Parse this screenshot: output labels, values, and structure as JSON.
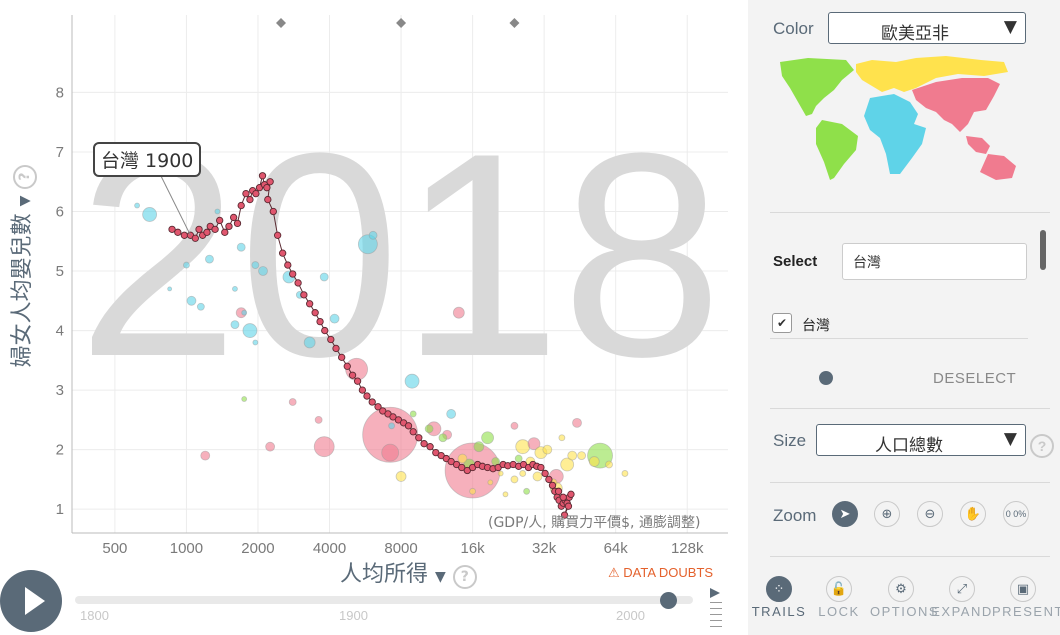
{
  "chart_data": {
    "type": "scatter",
    "year": "2018",
    "ylabel": "婦女人均嬰兒數",
    "xlabel": "人均所得",
    "x_unit_note": "(GDP/人, 購買力平價$, 通膨調整)",
    "x_scale": "log",
    "xlim": [
      330,
      190000
    ],
    "ylim": [
      0.6,
      9.3
    ],
    "x_ticks": [
      500,
      1000,
      2000,
      4000,
      8000,
      16000,
      32000,
      64000,
      128000
    ],
    "x_tick_labels": [
      "500",
      "1000",
      "2000",
      "4000",
      "8000",
      "16k",
      "32k",
      "64k",
      "128k"
    ],
    "y_ticks": [
      1,
      2,
      3,
      4,
      5,
      6,
      7,
      8
    ],
    "grid": true,
    "region_colors": {
      "africa": "#5fd3e8",
      "americas": "#8fe04a",
      "asia": "#f07b8f",
      "europe": "#ffe24d"
    },
    "bubbles": [
      {
        "x": 620,
        "y": 6.1,
        "size": 5,
        "region": "africa"
      },
      {
        "x": 700,
        "y": 5.95,
        "size": 14,
        "region": "africa"
      },
      {
        "x": 1350,
        "y": 6.0,
        "size": 5,
        "region": "africa"
      },
      {
        "x": 1250,
        "y": 5.2,
        "size": 8,
        "region": "africa"
      },
      {
        "x": 1150,
        "y": 4.4,
        "size": 7,
        "region": "africa"
      },
      {
        "x": 1600,
        "y": 4.1,
        "size": 8,
        "region": "africa"
      },
      {
        "x": 1700,
        "y": 5.4,
        "size": 8,
        "region": "africa"
      },
      {
        "x": 1850,
        "y": 4.0,
        "size": 14,
        "region": "africa"
      },
      {
        "x": 1950,
        "y": 3.8,
        "size": 5,
        "region": "africa"
      },
      {
        "x": 1950,
        "y": 5.1,
        "size": 7,
        "region": "africa"
      },
      {
        "x": 2100,
        "y": 5.0,
        "size": 9,
        "region": "africa"
      },
      {
        "x": 2700,
        "y": 4.9,
        "size": 12,
        "region": "africa"
      },
      {
        "x": 3000,
        "y": 4.6,
        "size": 7,
        "region": "africa"
      },
      {
        "x": 3300,
        "y": 3.8,
        "size": 11,
        "region": "africa"
      },
      {
        "x": 3800,
        "y": 4.9,
        "size": 8,
        "region": "africa"
      },
      {
        "x": 4200,
        "y": 4.2,
        "size": 9,
        "region": "africa"
      },
      {
        "x": 5800,
        "y": 5.45,
        "size": 19,
        "region": "africa"
      },
      {
        "x": 6100,
        "y": 5.6,
        "size": 8,
        "region": "africa"
      },
      {
        "x": 8900,
        "y": 3.15,
        "size": 14,
        "region": "africa"
      },
      {
        "x": 7300,
        "y": 2.4,
        "size": 6,
        "region": "africa"
      },
      {
        "x": 13000,
        "y": 2.6,
        "size": 9,
        "region": "africa"
      },
      {
        "x": 1050,
        "y": 4.5,
        "size": 9,
        "region": "africa"
      },
      {
        "x": 1000,
        "y": 5.1,
        "size": 6,
        "region": "africa"
      },
      {
        "x": 850,
        "y": 4.7,
        "size": 4,
        "region": "africa"
      },
      {
        "x": 1600,
        "y": 4.7,
        "size": 5,
        "region": "africa"
      },
      {
        "x": 1750,
        "y": 4.3,
        "size": 5,
        "region": "africa"
      },
      {
        "x": 5200,
        "y": 3.35,
        "size": 22,
        "region": "asia"
      },
      {
        "x": 7200,
        "y": 2.25,
        "size": 55,
        "region": "asia"
      },
      {
        "x": 3800,
        "y": 2.05,
        "size": 20,
        "region": "asia"
      },
      {
        "x": 7200,
        "y": 1.95,
        "size": 17,
        "region": "asia"
      },
      {
        "x": 16000,
        "y": 1.65,
        "size": 55,
        "region": "asia"
      },
      {
        "x": 11000,
        "y": 2.35,
        "size": 14,
        "region": "asia"
      },
      {
        "x": 14000,
        "y": 4.3,
        "size": 11,
        "region": "asia"
      },
      {
        "x": 29000,
        "y": 2.1,
        "size": 12,
        "region": "asia"
      },
      {
        "x": 36000,
        "y": 1.55,
        "size": 14,
        "region": "asia"
      },
      {
        "x": 44000,
        "y": 2.45,
        "size": 9,
        "region": "asia"
      },
      {
        "x": 2250,
        "y": 2.05,
        "size": 9,
        "region": "asia"
      },
      {
        "x": 1200,
        "y": 1.9,
        "size": 9,
        "region": "asia"
      },
      {
        "x": 1700,
        "y": 4.3,
        "size": 10,
        "region": "asia"
      },
      {
        "x": 3600,
        "y": 2.5,
        "size": 7,
        "region": "asia"
      },
      {
        "x": 2800,
        "y": 2.8,
        "size": 7,
        "region": "asia"
      },
      {
        "x": 24000,
        "y": 2.4,
        "size": 7,
        "region": "asia"
      },
      {
        "x": 12500,
        "y": 2.25,
        "size": 9,
        "region": "asia"
      },
      {
        "x": 17000,
        "y": 2.05,
        "size": 10,
        "region": "americas"
      },
      {
        "x": 15500,
        "y": 1.75,
        "size": 11,
        "region": "americas"
      },
      {
        "x": 18500,
        "y": 2.2,
        "size": 12,
        "region": "americas"
      },
      {
        "x": 55000,
        "y": 1.9,
        "size": 25,
        "region": "americas"
      },
      {
        "x": 20000,
        "y": 1.8,
        "size": 8,
        "region": "americas"
      },
      {
        "x": 10500,
        "y": 2.35,
        "size": 8,
        "region": "americas"
      },
      {
        "x": 9000,
        "y": 2.6,
        "size": 6,
        "region": "americas"
      },
      {
        "x": 25000,
        "y": 1.85,
        "size": 7,
        "region": "americas"
      },
      {
        "x": 1750,
        "y": 2.85,
        "size": 5,
        "region": "americas"
      },
      {
        "x": 12000,
        "y": 2.2,
        "size": 8,
        "region": "americas"
      },
      {
        "x": 27000,
        "y": 1.3,
        "size": 6,
        "region": "americas"
      },
      {
        "x": 30000,
        "y": 1.55,
        "size": 9,
        "region": "europe"
      },
      {
        "x": 36000,
        "y": 1.35,
        "size": 12,
        "region": "europe"
      },
      {
        "x": 40000,
        "y": 1.75,
        "size": 13,
        "region": "europe"
      },
      {
        "x": 42000,
        "y": 1.9,
        "size": 9,
        "region": "europe"
      },
      {
        "x": 46000,
        "y": 1.9,
        "size": 8,
        "region": "europe"
      },
      {
        "x": 52000,
        "y": 1.8,
        "size": 10,
        "region": "europe"
      },
      {
        "x": 60000,
        "y": 1.75,
        "size": 7,
        "region": "europe"
      },
      {
        "x": 28000,
        "y": 1.8,
        "size": 9,
        "region": "europe"
      },
      {
        "x": 33000,
        "y": 2.0,
        "size": 9,
        "region": "europe"
      },
      {
        "x": 35000,
        "y": 1.45,
        "size": 7,
        "region": "europe"
      },
      {
        "x": 26000,
        "y": 1.6,
        "size": 6,
        "region": "europe"
      },
      {
        "x": 24000,
        "y": 1.5,
        "size": 7,
        "region": "europe"
      },
      {
        "x": 16000,
        "y": 1.3,
        "size": 6,
        "region": "europe"
      },
      {
        "x": 21000,
        "y": 1.6,
        "size": 5,
        "region": "europe"
      },
      {
        "x": 19000,
        "y": 1.45,
        "size": 5,
        "region": "europe"
      },
      {
        "x": 26000,
        "y": 2.05,
        "size": 14,
        "region": "europe"
      },
      {
        "x": 31000,
        "y": 1.95,
        "size": 12,
        "region": "europe"
      },
      {
        "x": 14500,
        "y": 1.85,
        "size": 9,
        "region": "europe"
      },
      {
        "x": 8000,
        "y": 1.55,
        "size": 10,
        "region": "europe"
      },
      {
        "x": 70000,
        "y": 1.6,
        "size": 6,
        "region": "europe"
      },
      {
        "x": 38000,
        "y": 2.2,
        "size": 6,
        "region": "europe"
      },
      {
        "x": 22000,
        "y": 1.25,
        "size": 5,
        "region": "europe"
      }
    ],
    "trail": [
      [
        870,
        5.7
      ],
      [
        920,
        5.65
      ],
      [
        980,
        5.6
      ],
      [
        1040,
        5.6
      ],
      [
        1090,
        5.55
      ],
      [
        1130,
        5.7
      ],
      [
        1170,
        5.6
      ],
      [
        1220,
        5.65
      ],
      [
        1260,
        5.75
      ],
      [
        1320,
        5.7
      ],
      [
        1380,
        5.85
      ],
      [
        1450,
        5.65
      ],
      [
        1510,
        5.75
      ],
      [
        1580,
        5.9
      ],
      [
        1640,
        5.8
      ],
      [
        1700,
        6.1
      ],
      [
        1780,
        6.3
      ],
      [
        1850,
        6.2
      ],
      [
        1900,
        6.35
      ],
      [
        1960,
        6.3
      ],
      [
        2030,
        6.4
      ],
      [
        2090,
        6.6
      ],
      [
        2130,
        6.45
      ],
      [
        2180,
        6.4
      ],
      [
        2250,
        6.5
      ],
      [
        2200,
        6.2
      ],
      [
        2320,
        6.0
      ],
      [
        2420,
        5.6
      ],
      [
        2540,
        5.3
      ],
      [
        2670,
        5.1
      ],
      [
        2800,
        4.95
      ],
      [
        2950,
        4.8
      ],
      [
        3120,
        4.6
      ],
      [
        3300,
        4.45
      ],
      [
        3480,
        4.3
      ],
      [
        3650,
        4.15
      ],
      [
        3820,
        4.0
      ],
      [
        4050,
        3.85
      ],
      [
        4260,
        3.7
      ],
      [
        4500,
        3.55
      ],
      [
        4750,
        3.4
      ],
      [
        5000,
        3.25
      ],
      [
        5250,
        3.15
      ],
      [
        5500,
        3.0
      ],
      [
        5750,
        2.9
      ],
      [
        6050,
        2.8
      ],
      [
        6400,
        2.72
      ],
      [
        6700,
        2.65
      ],
      [
        7050,
        2.6
      ],
      [
        7400,
        2.55
      ],
      [
        7800,
        2.5
      ],
      [
        8200,
        2.45
      ],
      [
        8600,
        2.4
      ],
      [
        9000,
        2.3
      ],
      [
        9500,
        2.2
      ],
      [
        10000,
        2.1
      ],
      [
        10600,
        2.05
      ],
      [
        11200,
        1.95
      ],
      [
        11800,
        1.9
      ],
      [
        12400,
        1.85
      ],
      [
        13000,
        1.8
      ],
      [
        13700,
        1.75
      ],
      [
        14400,
        1.7
      ],
      [
        15200,
        1.65
      ],
      [
        16000,
        1.7
      ],
      [
        16800,
        1.75
      ],
      [
        17600,
        1.72
      ],
      [
        18500,
        1.7
      ],
      [
        19500,
        1.68
      ],
      [
        20500,
        1.7
      ],
      [
        21500,
        1.75
      ],
      [
        22500,
        1.73
      ],
      [
        23700,
        1.75
      ],
      [
        25000,
        1.72
      ],
      [
        26200,
        1.75
      ],
      [
        27500,
        1.7
      ],
      [
        28700,
        1.75
      ],
      [
        29800,
        1.72
      ],
      [
        31000,
        1.7
      ],
      [
        32300,
        1.6
      ],
      [
        33500,
        1.5
      ],
      [
        34700,
        1.4
      ],
      [
        35500,
        1.3
      ],
      [
        36300,
        1.2
      ],
      [
        37000,
        1.15
      ],
      [
        37800,
        1.05
      ],
      [
        38500,
        1.1
      ],
      [
        39200,
        1.15
      ],
      [
        40000,
        1.1
      ],
      [
        40800,
        1.2
      ],
      [
        41500,
        1.25
      ],
      [
        39000,
        0.9
      ],
      [
        40500,
        1.05
      ],
      [
        38500,
        1.2
      ],
      [
        36800,
        1.3
      ]
    ],
    "trail_start_label": "台灣 1900",
    "trail_start": [
      1040,
      5.6
    ]
  },
  "controls": {
    "doubts_label": "DATA DOUBTS",
    "timeline_start": "1800",
    "timeline_mid": "1900",
    "timeline_end": "2000",
    "timeline_position": 0.96
  },
  "sidebar": {
    "color_label": "Color",
    "color_value": "歐美亞非",
    "select_label": "Select",
    "select_value": "台灣",
    "selected_country": "台灣",
    "deselect_label": "DESELECT",
    "size_label": "Size",
    "size_value": "人口總數",
    "zoom_label": "Zoom",
    "zoom_percent": "0 0%",
    "help_glyph": "?",
    "dropdown_glyph": "▼",
    "footer": {
      "trails": "TRAILS",
      "lock": "LOCK",
      "options": "OPTIONS",
      "expand": "EXPAND",
      "present": "PRESENT"
    }
  }
}
